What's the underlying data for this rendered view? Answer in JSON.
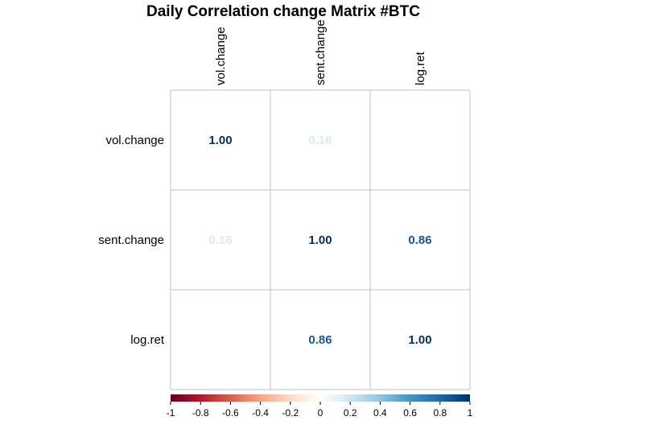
{
  "chart_data": {
    "type": "heatmap",
    "title": "Daily Correlation change Matrix #BTC",
    "rows": [
      "vol.change",
      "sent.change",
      "log.ret"
    ],
    "columns": [
      "vol.change",
      "sent.change",
      "log.ret"
    ],
    "values": [
      [
        1.0,
        0.16,
        null
      ],
      [
        0.16,
        1.0,
        0.86
      ],
      [
        null,
        0.86,
        1.0
      ]
    ],
    "labels": [
      [
        "1.00",
        "0.16",
        ""
      ],
      [
        "0.16",
        "1.00",
        "0.86"
      ],
      [
        "",
        "0.86",
        "1.00"
      ]
    ],
    "colorbar": {
      "range": [
        -1,
        1
      ],
      "ticks": [
        "-1",
        "-0.8",
        "-0.6",
        "-0.4",
        "-0.2",
        "0",
        "0.2",
        "0.4",
        "0.6",
        "0.8",
        "1"
      ],
      "colors": [
        "#67001F",
        "#B2182B",
        "#D6604D",
        "#F4A582",
        "#FDDBC7",
        "#FFFFFF",
        "#D1E5F0",
        "#92C5DE",
        "#4393C3",
        "#2166AC",
        "#053061"
      ]
    },
    "grid": true
  }
}
